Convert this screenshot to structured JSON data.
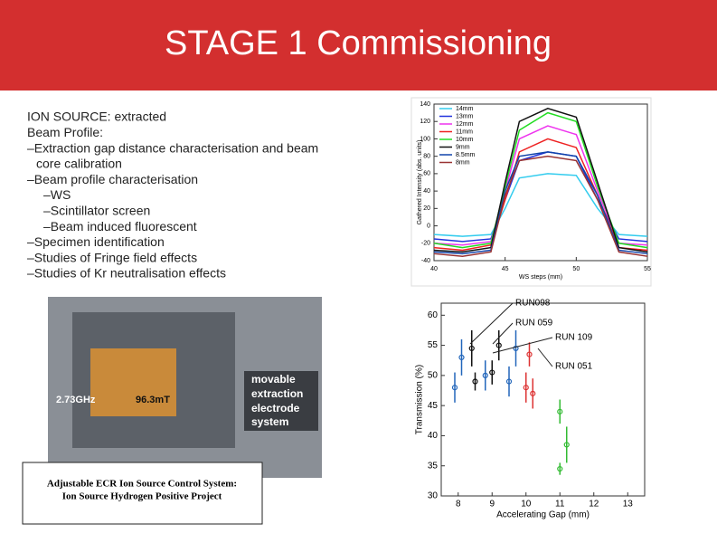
{
  "header": {
    "title": "STAGE 1 Commissioning"
  },
  "bullets": [
    "ION SOURCE: extracted",
    "Beam Profile:",
    "–Extraction gap distance characterisation  and beam",
    "core calibration",
    "–Beam profile characterisation",
    "–WS",
    "–Scintillator screen",
    "–Beam induced fluorescent",
    "–Specimen identification",
    "–Studies of Fringe field effects",
    "–Studies of Kr neutralisation effects"
  ],
  "schematic": {
    "labels": [
      "2.73GHz",
      "96.3mT",
      "movable",
      "extraction",
      "electrode",
      "system"
    ]
  },
  "paper": {
    "title": "Adjustable ECR Ion Source Control System:",
    "subtitle": "Ion Source Hydrogen Positive Project"
  },
  "chart_data": [
    {
      "type": "line",
      "xlabel": "WS steps (mm)",
      "ylabel": "Gathered Intensity (abs. units)",
      "xlim": [
        40,
        55
      ],
      "ylim": [
        -40,
        140
      ],
      "xticks": [
        40,
        45,
        50,
        55
      ],
      "yticks": [
        -40,
        -20,
        0,
        20,
        40,
        60,
        80,
        100,
        120,
        140
      ],
      "x": [
        40,
        42,
        44,
        45,
        46,
        48,
        50,
        51.5,
        53,
        55
      ],
      "series": [
        {
          "name": "14mm",
          "color": "#33ccee",
          "values": [
            -10,
            -12,
            -10,
            20,
            55,
            60,
            58,
            20,
            -10,
            -12
          ]
        },
        {
          "name": "13mm",
          "color": "#2233dd",
          "values": [
            -15,
            -18,
            -15,
            30,
            75,
            85,
            80,
            30,
            -15,
            -18
          ]
        },
        {
          "name": "12mm",
          "color": "#ee33ee",
          "values": [
            -20,
            -22,
            -18,
            40,
            100,
            115,
            105,
            40,
            -20,
            -22
          ]
        },
        {
          "name": "11mm",
          "color": "#ee2222",
          "values": [
            -25,
            -28,
            -22,
            30,
            85,
            100,
            90,
            35,
            -25,
            -28
          ]
        },
        {
          "name": "10mm",
          "color": "#22dd22",
          "values": [
            -20,
            -25,
            -20,
            45,
            110,
            130,
            120,
            45,
            -20,
            -25
          ]
        },
        {
          "name": "9mm",
          "color": "#111111",
          "values": [
            -28,
            -30,
            -25,
            50,
            120,
            135,
            125,
            50,
            -25,
            -30
          ]
        },
        {
          "name": "8.5mm",
          "color": "#1144aa",
          "values": [
            -30,
            -32,
            -28,
            40,
            80,
            85,
            80,
            35,
            -28,
            -32
          ]
        },
        {
          "name": "8mm",
          "color": "#993333",
          "values": [
            -32,
            -35,
            -30,
            35,
            75,
            80,
            75,
            30,
            -30,
            -35
          ]
        }
      ]
    },
    {
      "type": "scatter",
      "xlabel": "Accelerating Gap (mm)",
      "ylabel": "Transmission (%)",
      "xlim": [
        7.5,
        13.5
      ],
      "ylim": [
        30,
        62
      ],
      "xticks": [
        8,
        9,
        10,
        11,
        12,
        13
      ],
      "yticks": [
        30,
        35,
        40,
        45,
        50,
        55,
        60
      ],
      "annotations": [
        "RUN098",
        "RUN 059",
        "RUN 109",
        "RUN 051"
      ],
      "series": [
        {
          "name": "RUN 059",
          "color": "#2266bb",
          "x": [
            7.9,
            8.1,
            8.8,
            9.5,
            9.7
          ],
          "values": [
            48,
            53,
            50,
            49,
            54.5
          ],
          "errors": [
            2.5,
            3,
            2.5,
            2.5,
            3
          ]
        },
        {
          "name": "RUN098",
          "color": "#111111",
          "x": [
            8.4,
            8.5,
            9.0,
            9.2
          ],
          "values": [
            54.5,
            49,
            50.5,
            55
          ],
          "errors": [
            3,
            1.5,
            2,
            2.5
          ]
        },
        {
          "name": "RUN 051",
          "color": "#dd3333",
          "x": [
            10.0,
            10.2,
            10.1
          ],
          "values": [
            48,
            47,
            53.5
          ],
          "errors": [
            2.5,
            2.5,
            2
          ]
        },
        {
          "name": "RUN 109",
          "color": "#33bb33",
          "x": [
            11.0,
            11.2,
            11.0
          ],
          "values": [
            44,
            38.5,
            34.5
          ],
          "errors": [
            2,
            3,
            1
          ]
        }
      ]
    }
  ]
}
